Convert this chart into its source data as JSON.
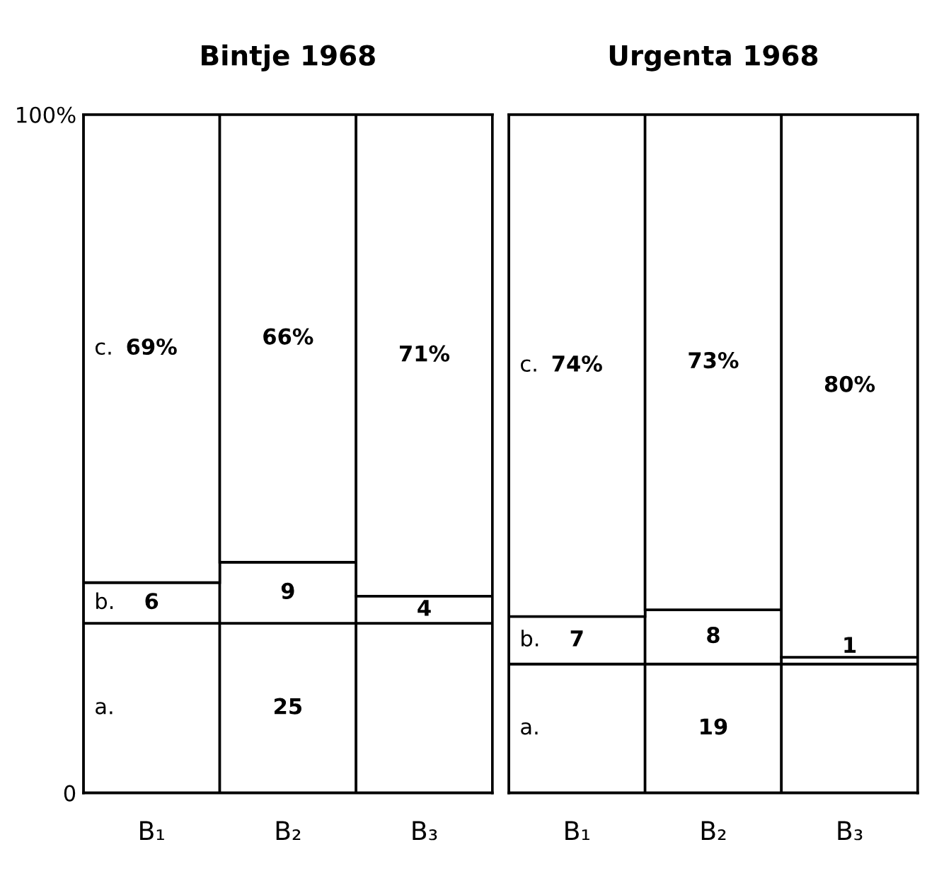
{
  "chart_data": [
    {
      "type": "bar",
      "title": "Bintje 1968",
      "categories": [
        "B₁",
        "B₂",
        "B₃"
      ],
      "stacked": true,
      "series": [
        {
          "color": "#ffffff",
          "values": [
            25,
            25,
            25
          ],
          "value_labels": [
            null,
            "25",
            null
          ]
        },
        {
          "color": "#ffffff",
          "values": [
            6,
            9,
            4
          ],
          "value_labels": [
            "6",
            "9",
            "4"
          ]
        },
        {
          "color": "#ffffff",
          "values": [
            69,
            66,
            71
          ],
          "value_labels": [
            "69%",
            "66%",
            "71%"
          ]
        }
      ],
      "ylim": [
        0,
        100
      ],
      "yticks": [
        0,
        {
          "value": 100,
          "label": "100%"
        }
      ],
      "grid": false,
      "legend": false,
      "annotations": [
        "a.",
        "b.",
        "c."
      ]
    },
    {
      "type": "bar",
      "title": "Urgenta 1968",
      "categories": [
        "B₁",
        "B₂",
        "B₃"
      ],
      "stacked": true,
      "series": [
        {
          "color": "#ffffff",
          "values": [
            19,
            19,
            19
          ],
          "value_labels": [
            null,
            "19",
            null
          ]
        },
        {
          "color": "#ffffff",
          "values": [
            7,
            8,
            1
          ],
          "value_labels": [
            "7",
            "8",
            "1"
          ]
        },
        {
          "color": "#ffffff",
          "values": [
            74,
            73,
            80
          ],
          "value_labels": [
            "74%",
            "73%",
            "80%"
          ]
        }
      ],
      "ylim": [
        0,
        100
      ],
      "tick_labels": "x",
      "grid": false,
      "legend": false,
      "annotations": [
        "a.",
        "b.",
        "c."
      ]
    }
  ]
}
